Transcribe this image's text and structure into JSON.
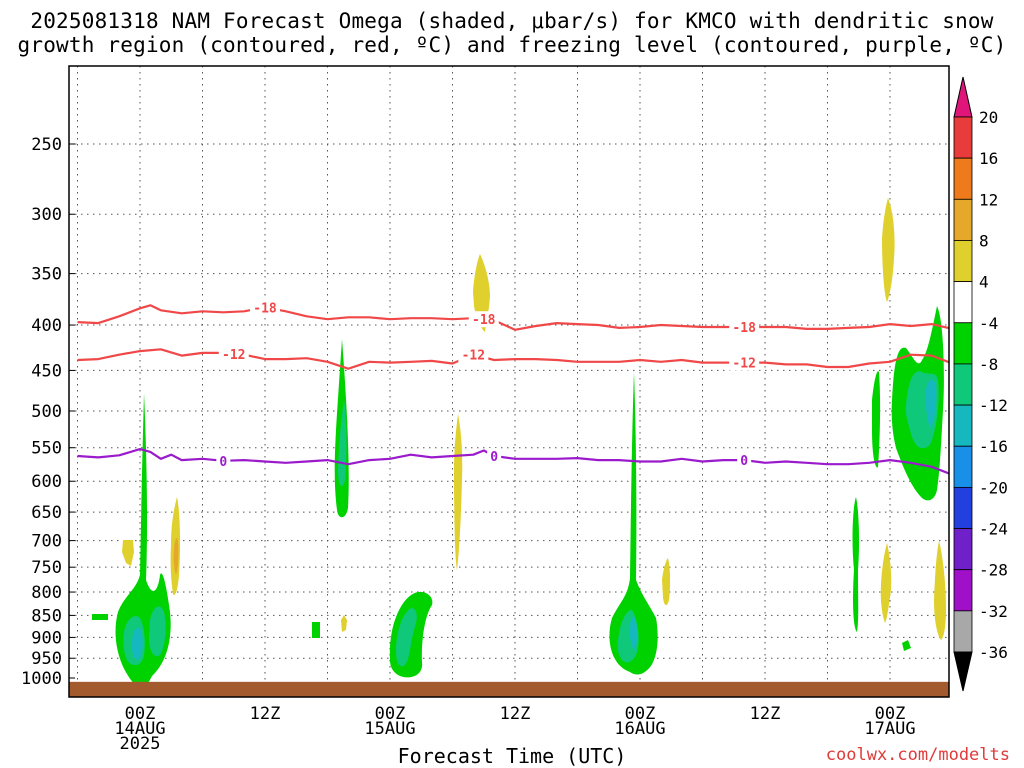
{
  "title_line1": "2025081318 NAM Forecast Omega (shaded, μbar/s) for KMCO with dendritic snow",
  "title_line2": "growth region (contoured, red, ºC) and freezing level (contoured, purple, ºC)",
  "credit": "coolwx.com/modelts",
  "chart_data": {
    "type": "heatmap",
    "xlabel": "Forecast Time (UTC)",
    "ylabel": "",
    "x_units": "hours since 2025-08-13 18Z",
    "xlim": [
      0,
      84
    ],
    "x_ticks": [
      {
        "hour": 6,
        "lines": [
          "00Z",
          "14AUG",
          "2025"
        ]
      },
      {
        "hour": 18,
        "lines": [
          "12Z"
        ]
      },
      {
        "hour": 30,
        "lines": [
          "00Z",
          "15AUG"
        ]
      },
      {
        "hour": 42,
        "lines": [
          "12Z"
        ]
      },
      {
        "hour": 54,
        "lines": [
          "00Z",
          "16AUG"
        ]
      },
      {
        "hour": 66,
        "lines": [
          "12Z"
        ]
      },
      {
        "hour": 78,
        "lines": [
          "00Z",
          "17AUG"
        ]
      }
    ],
    "y_scale": "log pressure (hPa), inverted",
    "ylim": [
      1000,
      200
    ],
    "y_ticks": [
      250,
      300,
      350,
      400,
      450,
      500,
      550,
      600,
      650,
      700,
      750,
      800,
      850,
      900,
      950,
      1000
    ],
    "grid": true,
    "colorbar": {
      "levels": [
        20,
        16,
        12,
        8,
        4,
        -4,
        -8,
        -12,
        -16,
        -20,
        -24,
        -28,
        -32,
        -36
      ],
      "labels": [
        "20",
        "16",
        "12",
        "8",
        "4",
        "-4",
        "-8",
        "-12",
        "-16",
        "-20",
        "-24",
        "-28",
        "-32",
        "-36"
      ],
      "colors": [
        "#ff3366",
        "#e83c3c",
        "#ee7a1c",
        "#e6a82a",
        "#e0d02e",
        "#ffffff",
        "#00d200",
        "#10c87a",
        "#16b8c0",
        "#1890e8",
        "#2240e0",
        "#7020c8",
        "#a010c8",
        "#a8a8a8"
      ],
      "over_color": "#e0157a",
      "under_color": "#000000"
    },
    "contours": [
      {
        "label": "-18",
        "color": "#f04848",
        "hours": [
          0,
          2,
          4,
          6,
          7,
          8,
          10,
          12,
          14,
          16,
          18,
          20,
          22,
          24,
          26,
          28,
          30,
          32,
          34,
          36,
          38,
          40,
          42,
          44,
          46,
          48,
          50,
          52,
          54,
          56,
          58,
          60,
          62,
          64,
          66,
          68,
          70,
          72,
          74,
          76,
          78,
          80,
          82,
          84
        ],
        "pressure": [
          397,
          398,
          391,
          383,
          380,
          385,
          388,
          386,
          387,
          386,
          382,
          386,
          391,
          394,
          392,
          392,
          394,
          393,
          393,
          394,
          393,
          395,
          405,
          401,
          398,
          399,
          400,
          403,
          402,
          400,
          401,
          402,
          402,
          402,
          402,
          402,
          404,
          404,
          403,
          402,
          399,
          401,
          399,
          404
        ]
      },
      {
        "label": "-12",
        "color": "#f04848",
        "hours": [
          0,
          2,
          4,
          6,
          8,
          10,
          12,
          14,
          16,
          18,
          20,
          22,
          24,
          26,
          28,
          30,
          32,
          34,
          36,
          38,
          40,
          42,
          44,
          46,
          48,
          50,
          52,
          54,
          56,
          58,
          60,
          62,
          64,
          66,
          68,
          70,
          72,
          74,
          76,
          78,
          80,
          82,
          84
        ],
        "pressure": [
          438,
          437,
          432,
          428,
          426,
          433,
          430,
          430,
          432,
          437,
          437,
          436,
          440,
          448,
          440,
          441,
          440,
          439,
          442,
          432,
          438,
          437,
          437,
          438,
          440,
          440,
          440,
          438,
          440,
          438,
          441,
          441,
          441,
          441,
          443,
          443,
          446,
          446,
          442,
          440,
          432,
          433,
          442
        ]
      },
      {
        "label": "0",
        "color": "#9a1acc",
        "hours": [
          0,
          2,
          4,
          6,
          7,
          8,
          9,
          10,
          12,
          14,
          16,
          18,
          20,
          22,
          24,
          26,
          28,
          30,
          32,
          34,
          36,
          38,
          39,
          40,
          42,
          44,
          46,
          48,
          50,
          52,
          54,
          56,
          58,
          60,
          62,
          64,
          66,
          68,
          70,
          72,
          74,
          76,
          78,
          80,
          82,
          84
        ],
        "pressure": [
          562,
          564,
          561,
          552,
          556,
          566,
          560,
          568,
          566,
          569,
          568,
          570,
          572,
          570,
          568,
          574,
          568,
          566,
          560,
          564,
          562,
          560,
          554,
          562,
          566,
          566,
          566,
          565,
          568,
          568,
          570,
          570,
          566,
          570,
          568,
          568,
          572,
          570,
          572,
          574,
          574,
          572,
          568,
          572,
          578,
          590
        ]
      }
    ],
    "omega_regions": [
      {
        "bin": "-4 to -8",
        "hour": 7.2,
        "p_top": 478,
        "p_bottom": 975
      },
      {
        "bin": "-4 to -8",
        "hour": 7.5,
        "p_top": 765,
        "p_bottom": 965
      },
      {
        "bin": "-4 to -8",
        "hour": 26.5,
        "p_top": 415,
        "p_bottom": 650
      },
      {
        "bin": "-4 to -8",
        "hour": 30.8,
        "p_top": 820,
        "p_bottom": 980
      },
      {
        "bin": "-4 to -8",
        "hour": 54.0,
        "p_top": 455,
        "p_bottom": 975
      },
      {
        "bin": "-4 to -8",
        "hour": 80.8,
        "p_top": 395,
        "p_bottom": 610
      },
      {
        "bin": "-4 to -8",
        "hour": 76.5,
        "p_top": 660,
        "p_bottom": 880
      },
      {
        "bin": "-12 to -16",
        "hour": 7.3,
        "p_top": 850,
        "p_bottom": 960
      },
      {
        "bin": "4 to 8",
        "hour": 9.8,
        "p_top": 660,
        "p_bottom": 800
      },
      {
        "bin": "4 to 8",
        "hour": 36.0,
        "p_top": 360,
        "p_bottom": 405
      },
      {
        "bin": "4 to 8",
        "hour": 78.0,
        "p_top": 300,
        "p_bottom": 370
      },
      {
        "bin": "4 to 8",
        "hour": 83.5,
        "p_top": 740,
        "p_bottom": 890
      }
    ],
    "terrain": {
      "label": "below ground",
      "color": "#a35a2c",
      "p_top": 1010
    }
  }
}
